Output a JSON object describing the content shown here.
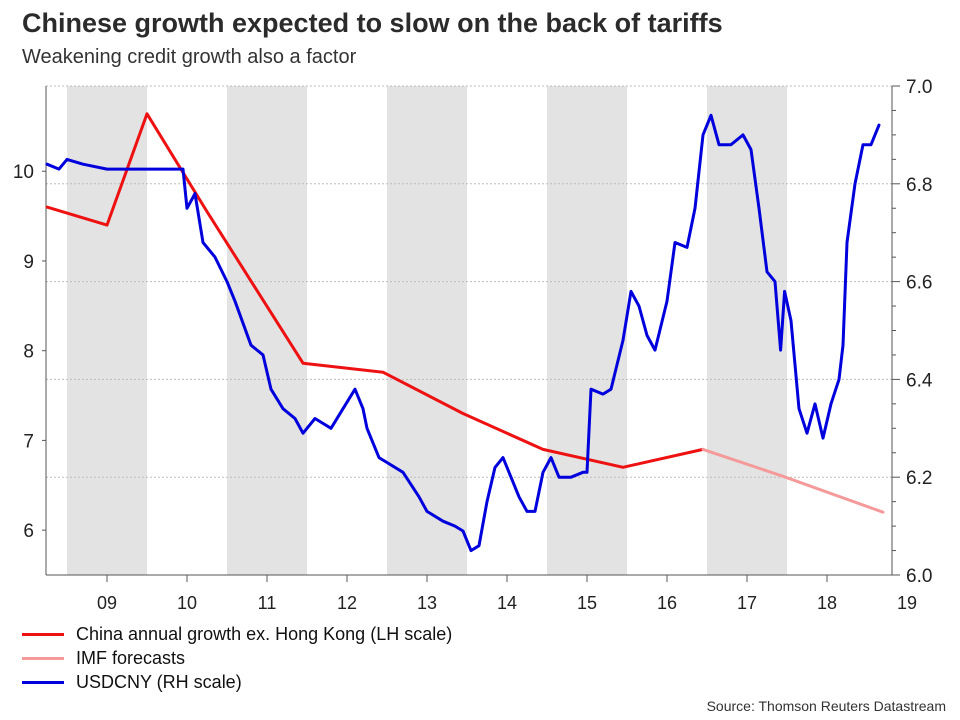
{
  "title": "Chinese growth expected to slow on the back of tariffs",
  "subtitle": "Weakening credit growth also a factor",
  "source": "Source: Thomson Reuters Datastream",
  "chart_data": {
    "type": "line",
    "x_tick_labels": [
      "09",
      "10",
      "11",
      "12",
      "13",
      "14",
      "15",
      "16",
      "17",
      "18",
      "19"
    ],
    "left_axis": {
      "ticks": [
        6,
        7,
        8,
        9,
        10
      ],
      "range": [
        5.5,
        10.95
      ]
    },
    "right_axis": {
      "ticks": [
        "6.0",
        "6.2",
        "6.4",
        "6.6",
        "6.8",
        "7.0"
      ],
      "range": [
        6.0,
        7.0
      ]
    },
    "shaded_years": [
      2009,
      2011,
      2013,
      2015,
      2017
    ],
    "grid": true,
    "legend_position": "bottom-left",
    "series": [
      {
        "name": "China annual growth ex. Hong Kong (LH scale)",
        "axis": "left",
        "color": "#ee1111",
        "points": [
          [
            2008.75,
            9.6
          ],
          [
            2009.5,
            9.4
          ],
          [
            2010.0,
            10.64
          ],
          [
            2010.75,
            9.55
          ],
          [
            2011.95,
            7.86
          ],
          [
            2012.95,
            7.76
          ],
          [
            2013.95,
            7.3
          ],
          [
            2014.95,
            6.9
          ],
          [
            2015.95,
            6.7
          ],
          [
            2016.95,
            6.9
          ]
        ]
      },
      {
        "name": "IMF forecasts",
        "axis": "left",
        "color": "#f59a9a",
        "points": [
          [
            2016.95,
            6.9
          ],
          [
            2017.95,
            6.6
          ],
          [
            2019.2,
            6.2
          ]
        ]
      },
      {
        "name": "USDCNY (RH scale)",
        "axis": "right",
        "color": "#0000dd",
        "points": [
          [
            2008.75,
            6.84
          ],
          [
            2008.9,
            6.83
          ],
          [
            2009.0,
            6.85
          ],
          [
            2009.2,
            6.84
          ],
          [
            2009.5,
            6.83
          ],
          [
            2009.8,
            6.83
          ],
          [
            2010.0,
            6.83
          ],
          [
            2010.3,
            6.83
          ],
          [
            2010.45,
            6.83
          ],
          [
            2010.5,
            6.75
          ],
          [
            2010.6,
            6.78
          ],
          [
            2010.7,
            6.68
          ],
          [
            2010.85,
            6.65
          ],
          [
            2011.0,
            6.6
          ],
          [
            2011.1,
            6.56
          ],
          [
            2011.3,
            6.47
          ],
          [
            2011.45,
            6.45
          ],
          [
            2011.55,
            6.38
          ],
          [
            2011.7,
            6.34
          ],
          [
            2011.85,
            6.32
          ],
          [
            2011.95,
            6.29
          ],
          [
            2012.1,
            6.32
          ],
          [
            2012.3,
            6.3
          ],
          [
            2012.45,
            6.34
          ],
          [
            2012.6,
            6.38
          ],
          [
            2012.7,
            6.34
          ],
          [
            2012.75,
            6.3
          ],
          [
            2012.9,
            6.24
          ],
          [
            2013.0,
            6.23
          ],
          [
            2013.2,
            6.21
          ],
          [
            2013.4,
            6.16
          ],
          [
            2013.5,
            6.13
          ],
          [
            2013.7,
            6.11
          ],
          [
            2013.85,
            6.1
          ],
          [
            2013.95,
            6.09
          ],
          [
            2014.05,
            6.05
          ],
          [
            2014.15,
            6.06
          ],
          [
            2014.25,
            6.15
          ],
          [
            2014.35,
            6.22
          ],
          [
            2014.45,
            6.24
          ],
          [
            2014.55,
            6.2
          ],
          [
            2014.65,
            6.16
          ],
          [
            2014.75,
            6.13
          ],
          [
            2014.85,
            6.13
          ],
          [
            2014.95,
            6.21
          ],
          [
            2015.05,
            6.24
          ],
          [
            2015.15,
            6.2
          ],
          [
            2015.3,
            6.2
          ],
          [
            2015.45,
            6.21
          ],
          [
            2015.5,
            6.21
          ],
          [
            2015.55,
            6.38
          ],
          [
            2015.7,
            6.37
          ],
          [
            2015.8,
            6.38
          ],
          [
            2015.95,
            6.48
          ],
          [
            2016.05,
            6.58
          ],
          [
            2016.15,
            6.55
          ],
          [
            2016.25,
            6.49
          ],
          [
            2016.35,
            6.46
          ],
          [
            2016.5,
            6.56
          ],
          [
            2016.6,
            6.68
          ],
          [
            2016.75,
            6.67
          ],
          [
            2016.85,
            6.75
          ],
          [
            2016.95,
            6.9
          ],
          [
            2017.05,
            6.94
          ],
          [
            2017.15,
            6.88
          ],
          [
            2017.3,
            6.88
          ],
          [
            2017.45,
            6.9
          ],
          [
            2017.55,
            6.87
          ],
          [
            2017.65,
            6.75
          ],
          [
            2017.75,
            6.62
          ],
          [
            2017.85,
            6.6
          ],
          [
            2017.92,
            6.46
          ],
          [
            2017.97,
            6.58
          ],
          [
            2018.05,
            6.52
          ],
          [
            2018.15,
            6.34
          ],
          [
            2018.25,
            6.29
          ],
          [
            2018.35,
            6.35
          ],
          [
            2018.45,
            6.28
          ],
          [
            2018.55,
            6.35
          ],
          [
            2018.65,
            6.4
          ],
          [
            2018.7,
            6.47
          ],
          [
            2018.75,
            6.68
          ],
          [
            2018.85,
            6.8
          ],
          [
            2018.95,
            6.88
          ],
          [
            2019.05,
            6.88
          ],
          [
            2019.15,
            6.92
          ]
        ]
      }
    ]
  }
}
